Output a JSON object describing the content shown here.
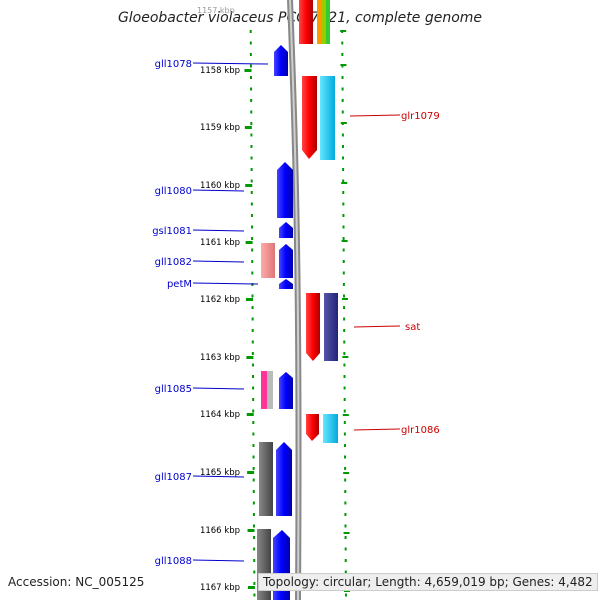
{
  "title": "Gloeobacter violaceus PCC 7421, complete genome",
  "top_tick_label": "1157 kbp",
  "kbp_ticks": [
    "1158 kbp",
    "1159 kbp",
    "1160 kbp",
    "1161 kbp",
    "1162 kbp",
    "1163 kbp",
    "1164 kbp",
    "1165 kbp",
    "1166 kbp",
    "1167 kbp"
  ],
  "left_genes": [
    {
      "label": "gll1078",
      "color": "#0000cc"
    },
    {
      "label": "gll1080",
      "color": "#0000cc"
    },
    {
      "label": "gsl1081",
      "color": "#0000cc"
    },
    {
      "label": "gll1082",
      "color": "#0000cc"
    },
    {
      "label": "petM",
      "color": "#0000cc"
    },
    {
      "label": "gll1085",
      "color": "#0000cc"
    },
    {
      "label": "gll1087",
      "color": "#0000cc"
    },
    {
      "label": "gll1088",
      "color": "#0000cc"
    }
  ],
  "right_genes": [
    {
      "label": "glr1079",
      "color": "#cc0000"
    },
    {
      "label": "sat",
      "color": "#cc0000"
    },
    {
      "label": "glr1086",
      "color": "#cc0000"
    }
  ],
  "colors": {
    "forward_gene": "#ff0000",
    "reverse_gene": "#0000ff",
    "cog_cyan": "#00ccff",
    "cog_purple": "#333399",
    "cog_pink": "#ee8888",
    "cog_magenta": "#ff3399",
    "cog_grey": "#555555",
    "ticks": "#009900"
  },
  "footer": {
    "accession": "Accession: NC_005125",
    "topology": "Topology: circular; Length: 4,659,019 bp; Genes: 4,482"
  }
}
